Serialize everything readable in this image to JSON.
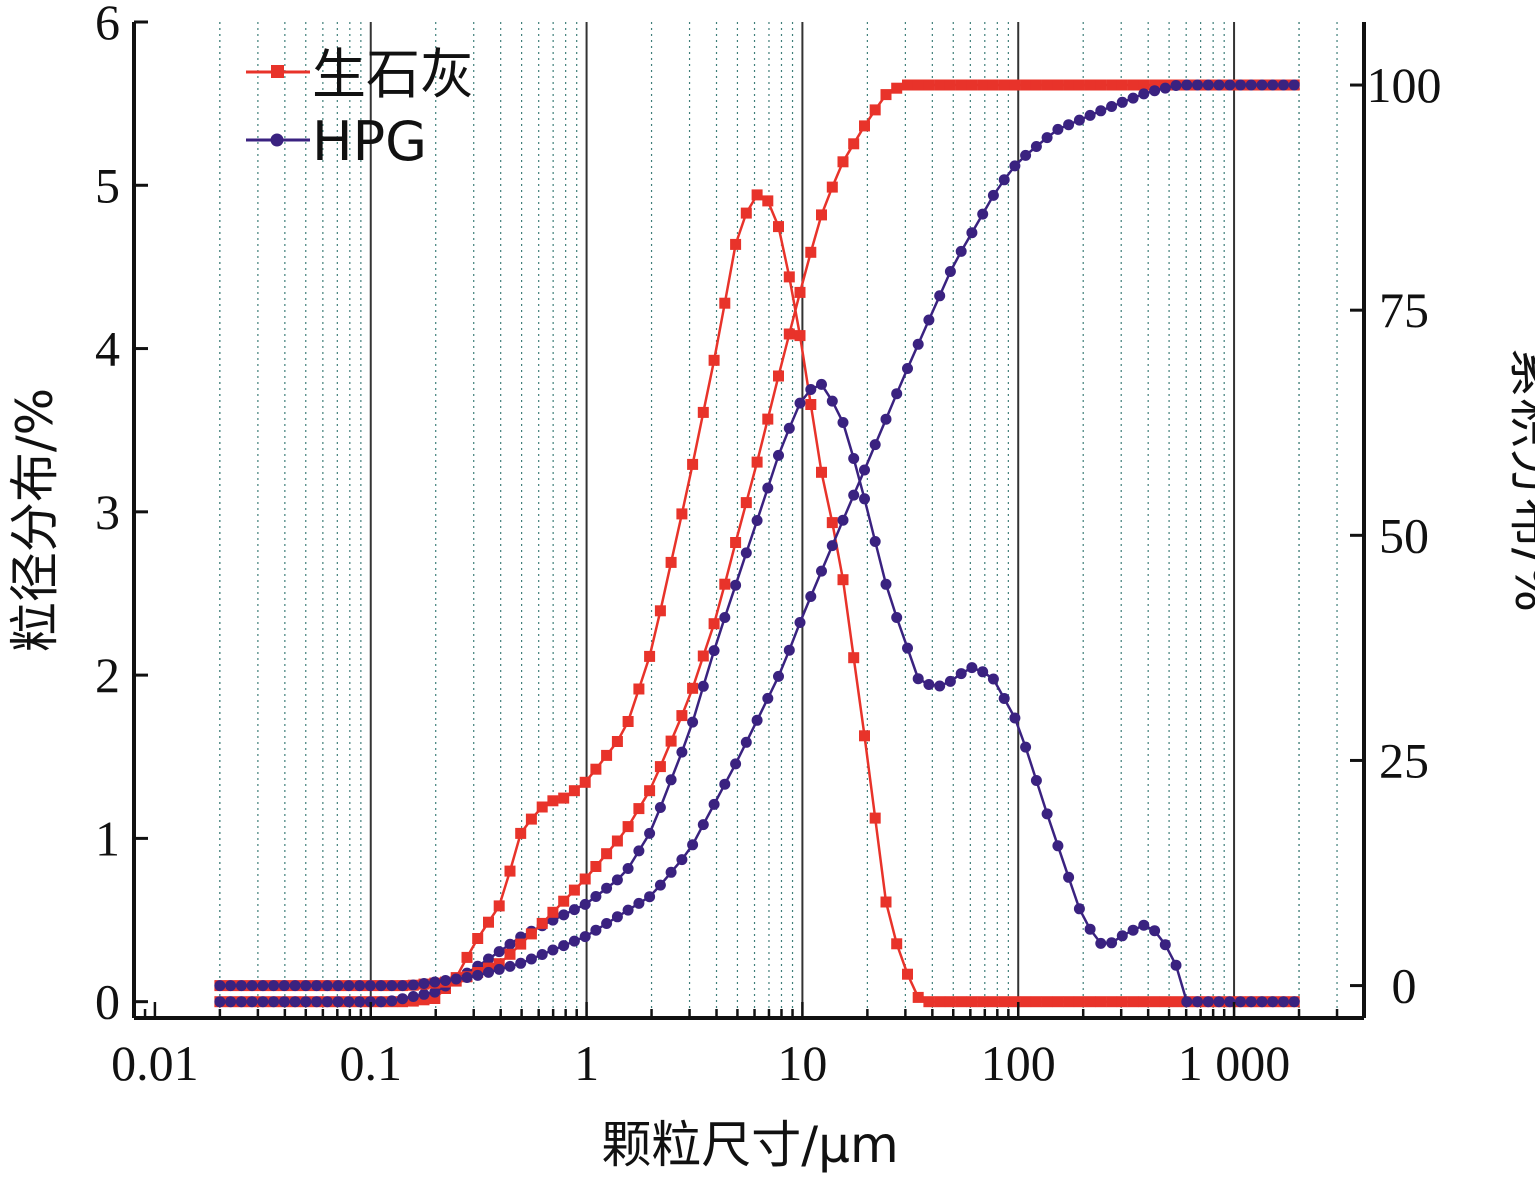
{
  "chart_data": {
    "type": "line",
    "x_scale": "log",
    "xlim": [
      0.008,
      4000
    ],
    "x_ticks": [
      0.01,
      0.1,
      1,
      10,
      100,
      1000
    ],
    "x_tick_labels": [
      "0.01",
      "0.1",
      "1",
      "10",
      "100",
      "1 000"
    ],
    "xlabel": "颗粒尺寸/μm",
    "ylabel_left": "粒径分布/%",
    "ylim_left": [
      -0.1,
      6
    ],
    "y_ticks_left": [
      0,
      1,
      2,
      3,
      4,
      5,
      6
    ],
    "y_tick_labels_left": [
      "0",
      "1",
      "2",
      "3",
      "4",
      "5",
      "6"
    ],
    "ylabel_right": "累积分布/%",
    "ylim_right": [
      -3.6,
      107
    ],
    "y_ticks_right": [
      0,
      25,
      50,
      75,
      100
    ],
    "y_tick_labels_right": [
      "0",
      "25",
      "50",
      "75",
      "100"
    ],
    "grid": "vertical-log",
    "legend_position": "top-left",
    "legend": [
      {
        "name": "生石灰",
        "color": "#e8332a",
        "marker": "square"
      },
      {
        "name": "HPG",
        "color": "#3a2280",
        "marker": "circle"
      }
    ],
    "series": [
      {
        "name": "生石灰",
        "kind": "distribution",
        "axis": "left",
        "color": "#e8332a",
        "marker": "square",
        "anchors": [
          [
            0.02,
            0
          ],
          [
            0.15,
            0
          ],
          [
            0.2,
            0.02
          ],
          [
            0.25,
            0.15
          ],
          [
            0.3,
            0.35
          ],
          [
            0.4,
            0.6
          ],
          [
            0.5,
            1.05
          ],
          [
            0.65,
            1.22
          ],
          [
            0.8,
            1.25
          ],
          [
            1.0,
            1.35
          ],
          [
            1.5,
            1.65
          ],
          [
            2.0,
            2.15
          ],
          [
            3.0,
            3.2
          ],
          [
            4.0,
            4.0
          ],
          [
            5.0,
            4.7
          ],
          [
            6.0,
            4.95
          ],
          [
            7.0,
            4.9
          ],
          [
            8.0,
            4.7
          ],
          [
            10,
            4.0
          ],
          [
            12,
            3.3
          ],
          [
            15,
            2.7
          ],
          [
            20,
            1.5
          ],
          [
            25,
            0.5
          ],
          [
            33,
            0.05
          ],
          [
            36,
            0
          ],
          [
            1900,
            0
          ]
        ]
      },
      {
        "name": "HPG",
        "kind": "distribution",
        "axis": "left",
        "color": "#3a2280",
        "marker": "circle",
        "anchors": [
          [
            0.02,
            0
          ],
          [
            0.12,
            0
          ],
          [
            0.2,
            0.06
          ],
          [
            0.3,
            0.2
          ],
          [
            0.5,
            0.4
          ],
          [
            0.7,
            0.5
          ],
          [
            1.0,
            0.6
          ],
          [
            1.5,
            0.78
          ],
          [
            2.0,
            1.05
          ],
          [
            3.0,
            1.65
          ],
          [
            4.0,
            2.2
          ],
          [
            6.0,
            2.9
          ],
          [
            8.0,
            3.4
          ],
          [
            10,
            3.7
          ],
          [
            12,
            3.8
          ],
          [
            15,
            3.6
          ],
          [
            18,
            3.25
          ],
          [
            25,
            2.5
          ],
          [
            35,
            1.95
          ],
          [
            45,
            1.93
          ],
          [
            60,
            2.05
          ],
          [
            75,
            2.0
          ],
          [
            100,
            1.7
          ],
          [
            140,
            1.1
          ],
          [
            200,
            0.5
          ],
          [
            250,
            0.33
          ],
          [
            300,
            0.4
          ],
          [
            380,
            0.47
          ],
          [
            450,
            0.42
          ],
          [
            550,
            0.2
          ],
          [
            600,
            0
          ],
          [
            1900,
            0
          ]
        ]
      },
      {
        "name": "生石灰",
        "kind": "cumulative",
        "axis": "right",
        "color": "#e8332a",
        "marker": "square",
        "anchors": [
          [
            0.02,
            0
          ],
          [
            0.15,
            0
          ],
          [
            0.25,
            0.5
          ],
          [
            0.4,
            2.5
          ],
          [
            0.6,
            6.5
          ],
          [
            1.0,
            12
          ],
          [
            1.5,
            17
          ],
          [
            2.0,
            22
          ],
          [
            3.0,
            32
          ],
          [
            4.0,
            41
          ],
          [
            5.0,
            50
          ],
          [
            6.0,
            57
          ],
          [
            8.0,
            69
          ],
          [
            10,
            78
          ],
          [
            12,
            85
          ],
          [
            15,
            91
          ],
          [
            20,
            96
          ],
          [
            25,
            99.3
          ],
          [
            30,
            100
          ],
          [
            1900,
            100
          ]
        ]
      },
      {
        "name": "HPG",
        "kind": "cumulative",
        "axis": "right",
        "color": "#3a2280",
        "marker": "circle",
        "anchors": [
          [
            0.02,
            0
          ],
          [
            0.15,
            0
          ],
          [
            0.3,
            1
          ],
          [
            0.5,
            2.5
          ],
          [
            1.0,
            5.5
          ],
          [
            2.0,
            10
          ],
          [
            3.0,
            15
          ],
          [
            5.0,
            25
          ],
          [
            8.0,
            35
          ],
          [
            10,
            41
          ],
          [
            15,
            51
          ],
          [
            20,
            58
          ],
          [
            30,
            68
          ],
          [
            50,
            80
          ],
          [
            80,
            88.5
          ],
          [
            100,
            91.5
          ],
          [
            150,
            95
          ],
          [
            250,
            97.3
          ],
          [
            400,
            99.2
          ],
          [
            550,
            100
          ],
          [
            1900,
            100
          ]
        ]
      }
    ]
  }
}
